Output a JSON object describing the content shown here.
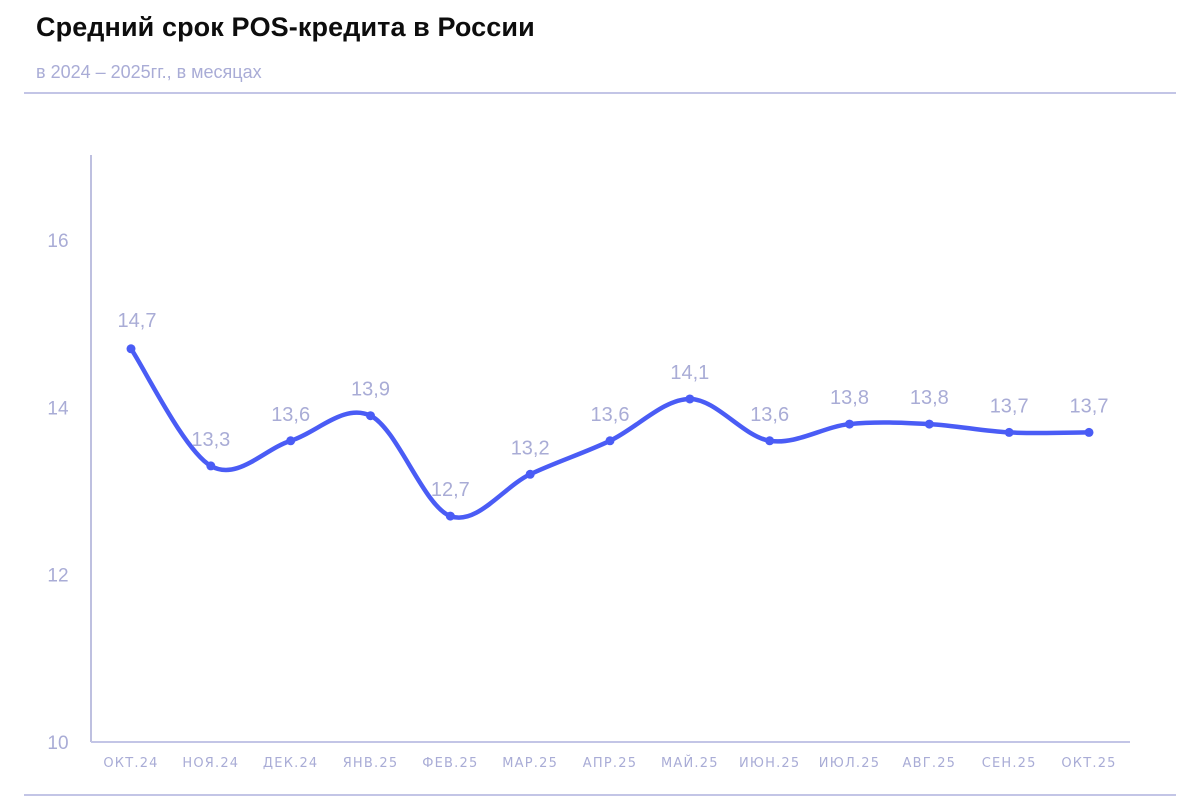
{
  "header": {
    "title": "Средний срок POS-кредита в России",
    "subtitle": "в 2024 – 2025гг., в месяцах"
  },
  "colors": {
    "line": "#4a5cf5",
    "axis": "#a9acd6",
    "label": "#a9acd6",
    "rule": "#c3c5e6",
    "title": "#0d0d0d"
  },
  "chart_data": {
    "type": "line",
    "title": "Средний срок POS-кредита в России",
    "subtitle": "в 2024 – 2025гг., в месяцах",
    "xlabel": "",
    "ylabel": "",
    "ylim": [
      10,
      17
    ],
    "yticks": [
      10,
      12,
      14,
      16
    ],
    "ytick_labels": [
      "10",
      "12",
      "14",
      "16"
    ],
    "grid": false,
    "legend": null,
    "categories": [
      "ОКТ.24",
      "НОЯ.24",
      "ДЕК.24",
      "ЯНВ.25",
      "ФЕВ.25",
      "МАР.25",
      "АПР.25",
      "МАЙ.25",
      "ИЮН.25",
      "ИЮЛ.25",
      "АВГ.25",
      "СЕН.25",
      "ОКТ.25"
    ],
    "values": [
      14.7,
      13.3,
      13.6,
      13.9,
      12.7,
      13.2,
      13.6,
      14.1,
      13.6,
      13.8,
      13.8,
      13.7,
      13.7
    ],
    "data_labels": [
      "14,7",
      "13,3",
      "13,6",
      "13,9",
      "12,7",
      "13,2",
      "13,6",
      "14,1",
      "13,6",
      "13,8",
      "13,8",
      "13,7",
      "13,7"
    ],
    "smooth": true,
    "markers": true
  }
}
